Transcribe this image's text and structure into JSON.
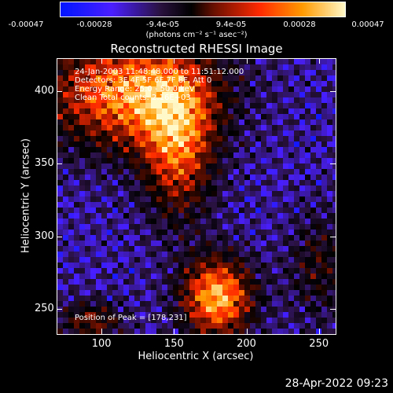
{
  "colorbar": {
    "ticks": [
      "-0.00047",
      "-0.00028",
      "-9.4e-05",
      "9.4e-05",
      "0.00028",
      "0.00047"
    ],
    "unit": "(photons cm⁻² s⁻¹ asec⁻²)"
  },
  "chart_data": {
    "type": "heatmap",
    "title": "Reconstructed RHESSI Image",
    "xlabel": "Heliocentric X (arcsec)",
    "ylabel": "Heliocentric Y (arcsec)",
    "xlim": [
      69,
      261
    ],
    "ylim": [
      233,
      423
    ],
    "x_ticks": [
      100,
      150,
      200,
      250
    ],
    "y_ticks": [
      250,
      300,
      350,
      400
    ],
    "value_range": [
      -0.00047,
      0.00047
    ],
    "colormap": [
      "#0015ff",
      "#4a1fff",
      "#2a1240",
      "#000000",
      "#6a1000",
      "#ff2a00",
      "#ff9a00",
      "#fff8c8"
    ],
    "grid": false,
    "annotations": [
      "24-Jan-2003 11:48:48.000 to 11:51:12.000",
      "Detectors: 3F 4F 5F 6F 7F 8F, Att 0",
      "Energy Range: 25.0 - 50.0 keV",
      "Clean     Total counts: 2.16E+03"
    ],
    "peak_text": "Position of Peak = [178,231]",
    "peak": [
      178,
      231
    ]
  },
  "timestamp": "28-Apr-2022 09:23"
}
